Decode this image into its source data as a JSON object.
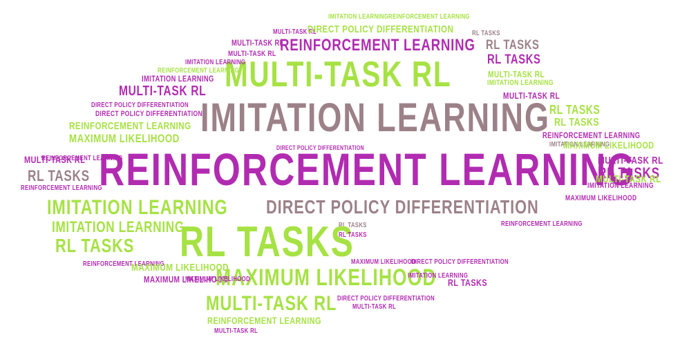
{
  "palette": {
    "green": "#a6e244",
    "purple": "#b12bb1",
    "mauve": "#9c8189"
  },
  "words": [
    {
      "text": "IMITATION LEARNING",
      "color": "green"
    },
    {
      "text": "REINFORCEMENT LEARNING",
      "color": "green"
    },
    {
      "text": "MULTI-TASK RL",
      "color": "purple"
    },
    {
      "text": "DIRECT POLICY DIFFERENTIATION",
      "color": "green"
    },
    {
      "text": "RL TASKS",
      "color": "mauve"
    },
    {
      "text": "MULTI-TASK RL",
      "color": "purple"
    },
    {
      "text": "REINFORCEMENT LEARNING",
      "color": "purple"
    },
    {
      "text": "RL TASKS",
      "color": "mauve"
    },
    {
      "text": "MULTI-TASK RL",
      "color": "purple"
    },
    {
      "text": "MULTI-TASK RL",
      "color": "green"
    },
    {
      "text": "IMITATION LEARNING",
      "color": "purple"
    },
    {
      "text": "RL TASKS",
      "color": "purple"
    },
    {
      "text": "REINFORCEMENT LEARNING",
      "color": "green"
    },
    {
      "text": "IMITATION LEARNING",
      "color": "purple"
    },
    {
      "text": "MULTI-TASK RL",
      "color": "green"
    },
    {
      "text": "MULTI-TASK RL",
      "color": "purple"
    },
    {
      "text": "IMITATION LEARNING",
      "color": "green"
    },
    {
      "text": "MULTI-TASK RL",
      "color": "purple"
    },
    {
      "text": "DIRECT POLICY DIFFERENTIATION",
      "color": "purple"
    },
    {
      "text": "RL TASKS",
      "color": "green"
    },
    {
      "text": "IMITATION LEARNING",
      "color": "mauve"
    },
    {
      "text": "DIRECT POLICY DIFFERENTIATION",
      "color": "purple"
    },
    {
      "text": "RL TASKS",
      "color": "green"
    },
    {
      "text": "REINFORCEMENT LEARNING",
      "color": "green"
    },
    {
      "text": "MAXIMUM LIKELIHOOD",
      "color": "green"
    },
    {
      "text": "REINFORCEMENT LEARNING",
      "color": "purple"
    },
    {
      "text": "IMITATION LEARNING",
      "color": "mauve"
    },
    {
      "text": "MAXIMUM LIKELIHOOD",
      "color": "green"
    },
    {
      "text": "REINFORCEMENT LEARNING",
      "color": "purple"
    },
    {
      "text": "DIRECT POLICY DIFFERENTIATION",
      "color": "purple"
    },
    {
      "text": "MULTI-TASK RL",
      "color": "purple"
    },
    {
      "text": "REINFORCEMENT LEARNING",
      "color": "purple"
    },
    {
      "text": "MULTI-TASK RL",
      "color": "purple"
    },
    {
      "text": "RL TASKS",
      "color": "purple"
    },
    {
      "text": "RL TASKS",
      "color": "mauve"
    },
    {
      "text": "REINFORCEMENT LEARNING",
      "color": "purple"
    },
    {
      "text": "IMITATION LEARNING",
      "color": "purple"
    },
    {
      "text": "MULTI-TASK RL",
      "color": "green"
    },
    {
      "text": "IMITATION LEARNING",
      "color": "green"
    },
    {
      "text": "DIRECT POLICY DIFFERENTIATION",
      "color": "mauve"
    },
    {
      "text": "MAXIMUM LIKELIHOOD",
      "color": "purple"
    },
    {
      "text": "IMITATION LEARNING",
      "color": "green"
    },
    {
      "text": "RL TASKS",
      "color": "mauve"
    },
    {
      "text": "RL TASKS",
      "color": "green"
    },
    {
      "text": "RL TASKS",
      "color": "green"
    },
    {
      "text": "REINFORCEMENT LEARNING",
      "color": "purple"
    },
    {
      "text": "REINFORCEMENT LEARNING",
      "color": "purple"
    },
    {
      "text": "MAXIMUM LIKELIHOOD",
      "color": "green"
    },
    {
      "text": "MAXIMUM LIKELIHOOD",
      "color": "purple"
    },
    {
      "text": "DIRECT POLICY DIFFERENTIATION",
      "color": "purple"
    },
    {
      "text": "MAXIMUM LIKELIHOOD",
      "color": "purple"
    },
    {
      "text": "MAXIMUM LIKELIHOOD",
      "color": "green"
    },
    {
      "text": "IMITATION LEARNING",
      "color": "purple"
    },
    {
      "text": "RL TASKS",
      "color": "purple"
    },
    {
      "text": "MULTI-TASK RL",
      "color": "green"
    },
    {
      "text": "DIRECT POLICY DIFFERENTIATION",
      "color": "purple"
    },
    {
      "text": "REINFORCEMENT LEARNING",
      "color": "green"
    },
    {
      "text": "MULTI-TASK RL",
      "color": "purple"
    },
    {
      "text": "MAXIMUM LIKELIHOOD",
      "color": "purple"
    },
    {
      "text": "RL TASKS",
      "color": "purple"
    },
    {
      "text": "MULTI-TASK RL",
      "color": "purple"
    }
  ]
}
